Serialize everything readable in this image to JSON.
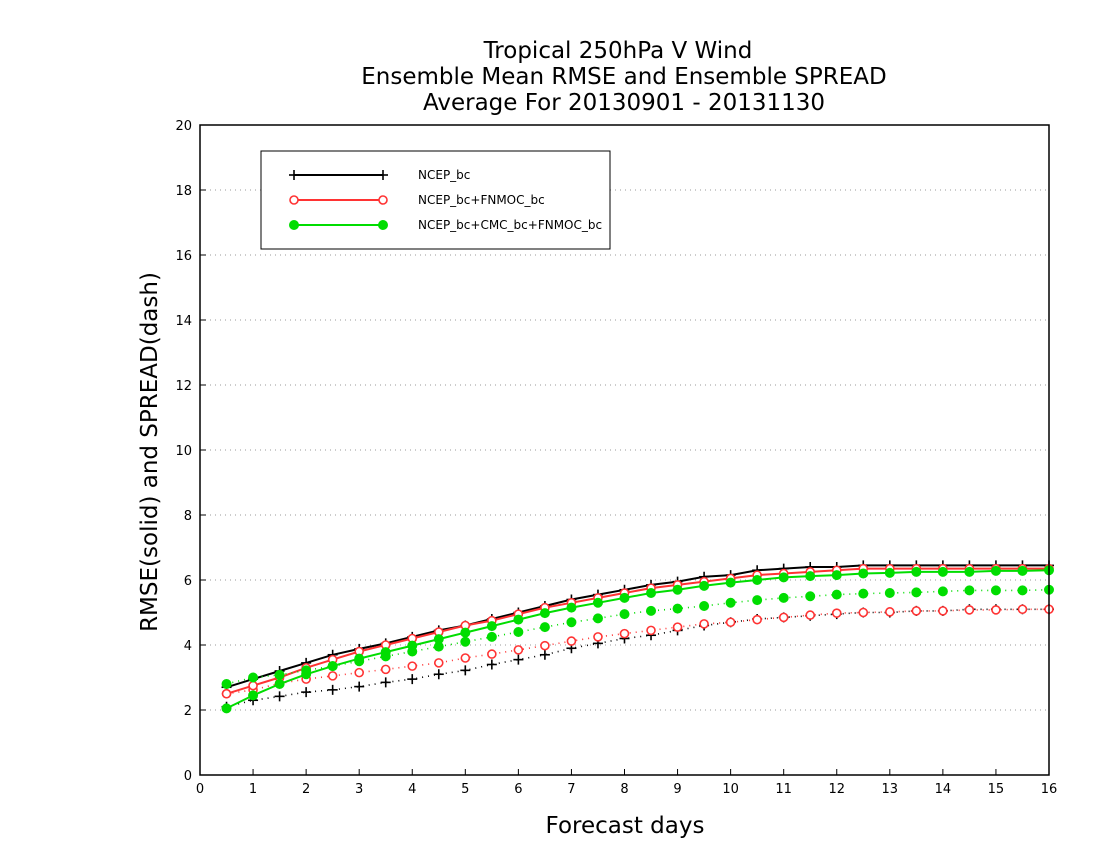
{
  "chart_data": {
    "type": "line",
    "title": [
      "Tropical 250hPa V Wind",
      "Ensemble Mean RMSE and Ensemble SPREAD",
      "Average For 20130901 - 20131130"
    ],
    "xlabel": "Forecast days",
    "ylabel": "RMSE(solid) and SPREAD(dash)",
    "xlim": [
      0,
      16
    ],
    "ylim": [
      0,
      20
    ],
    "xticks": [
      "0",
      "1",
      "2",
      "3",
      "4",
      "5",
      "6",
      "7",
      "8",
      "9",
      "10",
      "11",
      "12",
      "13",
      "14",
      "15",
      "16"
    ],
    "yticks": [
      "0",
      "2",
      "4",
      "6",
      "8",
      "10",
      "12",
      "14",
      "16",
      "18",
      "20"
    ],
    "grid": "horizontal dotted",
    "legend_position": "top-left",
    "x": [
      0.5,
      1,
      1.5,
      2,
      2.5,
      3,
      3.5,
      4,
      4.5,
      5,
      5.5,
      6,
      6.5,
      7,
      7.5,
      8,
      8.5,
      9,
      9.5,
      10,
      10.5,
      11,
      11.5,
      12,
      12.5,
      13,
      13.5,
      14,
      14.5,
      15,
      15.5,
      16
    ],
    "series": [
      {
        "name": "NCEP_bc",
        "color": "#000000",
        "marker": "plus",
        "rmse": [
          2.7,
          2.95,
          3.2,
          3.45,
          3.7,
          3.88,
          4.05,
          4.25,
          4.45,
          4.6,
          4.8,
          5.0,
          5.2,
          5.4,
          5.55,
          5.7,
          5.85,
          5.95,
          6.1,
          6.15,
          6.3,
          6.35,
          6.4,
          6.4,
          6.45,
          6.45,
          6.45,
          6.45,
          6.45,
          6.45,
          6.45,
          6.45
        ],
        "spread": [
          2.1,
          2.3,
          2.42,
          2.55,
          2.62,
          2.72,
          2.85,
          2.95,
          3.1,
          3.22,
          3.4,
          3.55,
          3.7,
          3.9,
          4.05,
          4.2,
          4.3,
          4.45,
          4.6,
          4.7,
          4.8,
          4.85,
          4.9,
          4.95,
          5.0,
          5.0,
          5.05,
          5.05,
          5.1,
          5.1,
          5.1,
          5.1
        ]
      },
      {
        "name": "NCEP_bc+FNMOC_bc",
        "color": "#ff3333",
        "marker": "open-circle",
        "rmse": [
          2.5,
          2.75,
          3.0,
          3.3,
          3.55,
          3.8,
          4.0,
          4.2,
          4.4,
          4.6,
          4.75,
          4.95,
          5.15,
          5.3,
          5.45,
          5.6,
          5.75,
          5.85,
          5.95,
          6.05,
          6.15,
          6.2,
          6.25,
          6.3,
          6.35,
          6.35,
          6.35,
          6.35,
          6.35,
          6.35,
          6.35,
          6.35
        ],
        "spread": [
          2.5,
          2.62,
          2.82,
          2.95,
          3.05,
          3.15,
          3.25,
          3.35,
          3.45,
          3.6,
          3.72,
          3.85,
          3.98,
          4.12,
          4.25,
          4.35,
          4.45,
          4.55,
          4.65,
          4.7,
          4.78,
          4.85,
          4.92,
          4.98,
          5.0,
          5.02,
          5.05,
          5.05,
          5.08,
          5.08,
          5.1,
          5.1
        ]
      },
      {
        "name": "NCEP_bc+CMC_bc+FNMOC_bc",
        "color": "#00dd00",
        "marker": "filled-circle",
        "rmse": [
          2.05,
          2.45,
          2.8,
          3.1,
          3.35,
          3.58,
          3.78,
          3.98,
          4.18,
          4.38,
          4.58,
          4.78,
          4.98,
          5.15,
          5.3,
          5.45,
          5.6,
          5.7,
          5.82,
          5.92,
          6.0,
          6.08,
          6.12,
          6.15,
          6.2,
          6.22,
          6.25,
          6.25,
          6.25,
          6.28,
          6.28,
          6.3
        ],
        "spread": [
          2.8,
          3.0,
          3.08,
          3.22,
          3.35,
          3.5,
          3.65,
          3.8,
          3.95,
          4.1,
          4.25,
          4.4,
          4.55,
          4.7,
          4.82,
          4.95,
          5.05,
          5.12,
          5.2,
          5.3,
          5.38,
          5.45,
          5.5,
          5.55,
          5.58,
          5.6,
          5.62,
          5.65,
          5.68,
          5.68,
          5.68,
          5.7
        ]
      }
    ]
  }
}
